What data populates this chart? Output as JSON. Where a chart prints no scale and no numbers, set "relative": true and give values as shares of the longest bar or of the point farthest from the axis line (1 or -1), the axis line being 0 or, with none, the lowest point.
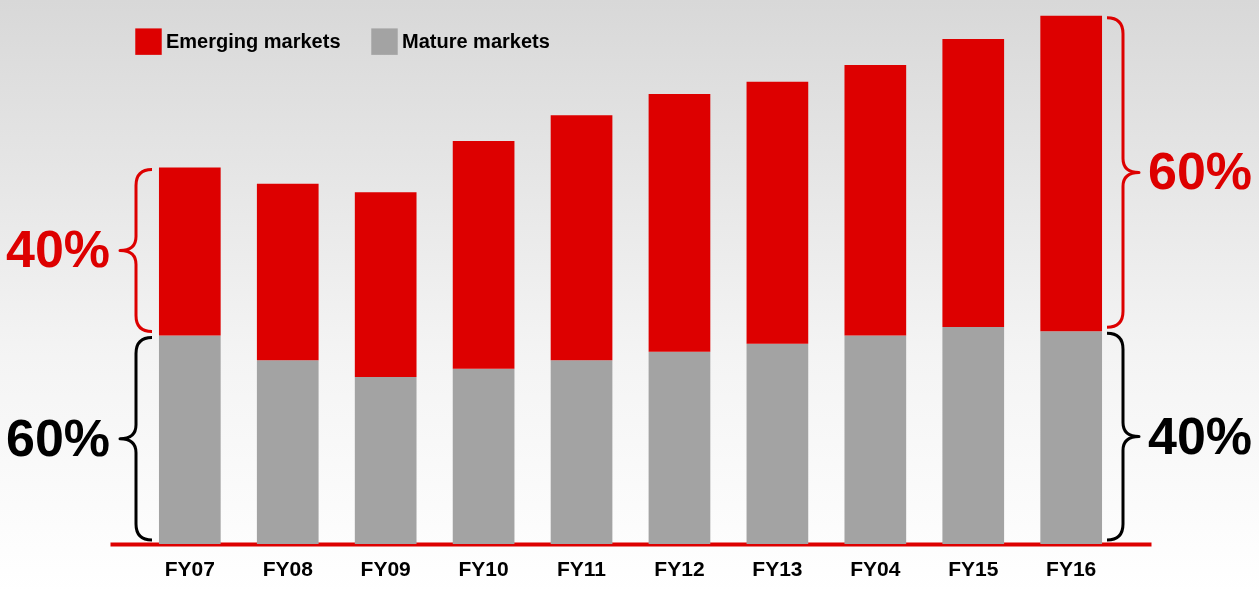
{
  "chart_data": {
    "type": "bar",
    "stacked": true,
    "relative": true,
    "legend": "top left",
    "grid": false,
    "categories": [
      "FY07",
      "FY08",
      "FY09",
      "FY10",
      "FY11",
      "FY12",
      "FY13",
      "FY04",
      "FY15",
      "FY16"
    ],
    "series": [
      {
        "name": "Mature markets",
        "color": "#a3a3a3",
        "values": [
          0.395,
          0.348,
          0.316,
          0.332,
          0.348,
          0.364,
          0.379,
          0.395,
          0.411,
          0.403
        ]
      },
      {
        "name": "Emerging markets",
        "color": "#dd0000",
        "values": [
          0.318,
          0.334,
          0.35,
          0.431,
          0.464,
          0.488,
          0.496,
          0.512,
          0.545,
          0.597
        ]
      }
    ],
    "annotations": [
      "40%",
      "60%",
      "60%",
      "40%"
    ]
  }
}
